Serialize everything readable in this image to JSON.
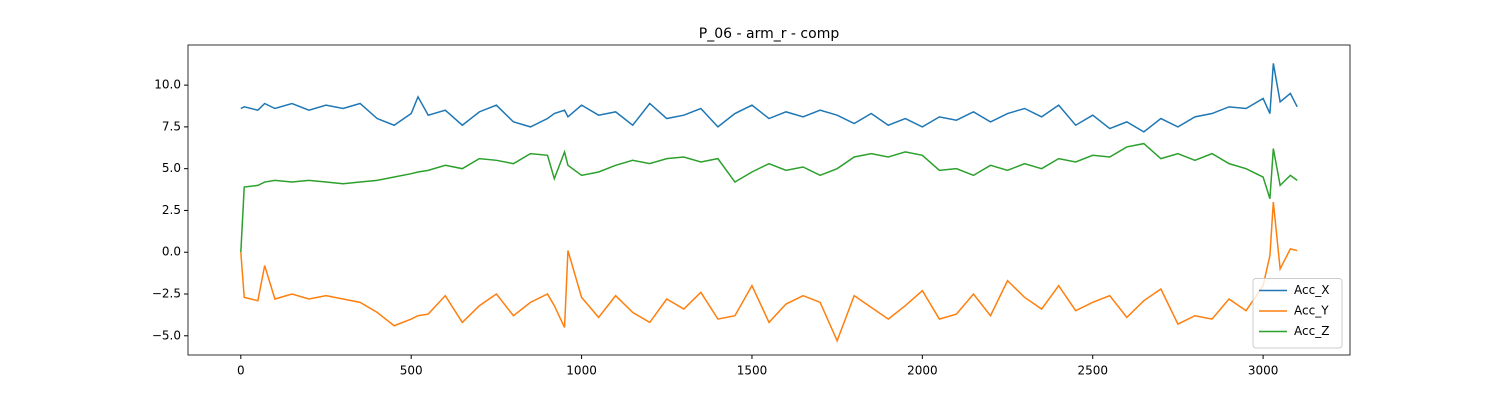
{
  "chart_data": {
    "type": "line",
    "title": "P_06 - arm_r - comp",
    "x": [
      0,
      10,
      50,
      70,
      100,
      150,
      200,
      250,
      300,
      350,
      400,
      450,
      500,
      520,
      550,
      600,
      650,
      700,
      750,
      800,
      850,
      900,
      920,
      950,
      960,
      1000,
      1050,
      1100,
      1150,
      1200,
      1250,
      1300,
      1350,
      1400,
      1450,
      1500,
      1550,
      1600,
      1650,
      1700,
      1750,
      1800,
      1850,
      1900,
      1950,
      2000,
      2050,
      2100,
      2150,
      2200,
      2250,
      2300,
      2350,
      2400,
      2450,
      2500,
      2550,
      2600,
      2650,
      2700,
      2750,
      2800,
      2850,
      2900,
      2950,
      3000,
      3020,
      3030,
      3050,
      3080,
      3100
    ],
    "series": [
      {
        "name": "Acc_X",
        "color": "#1f77b4",
        "values": [
          8.6,
          8.7,
          8.5,
          8.9,
          8.6,
          8.9,
          8.5,
          8.8,
          8.6,
          8.9,
          8.0,
          7.6,
          8.3,
          9.3,
          8.2,
          8.5,
          7.6,
          8.4,
          8.8,
          7.8,
          7.5,
          8.0,
          8.3,
          8.5,
          8.1,
          8.8,
          8.2,
          8.4,
          7.6,
          8.9,
          8.0,
          8.2,
          8.6,
          7.5,
          8.3,
          8.8,
          8.0,
          8.4,
          8.1,
          8.5,
          8.2,
          7.7,
          8.3,
          7.6,
          8.0,
          7.5,
          8.1,
          7.9,
          8.4,
          7.8,
          8.3,
          8.6,
          8.1,
          8.8,
          7.6,
          8.2,
          7.4,
          7.8,
          7.2,
          8.0,
          7.5,
          8.1,
          8.3,
          8.7,
          8.6,
          9.2,
          8.3,
          11.3,
          9.0,
          9.5,
          8.7
        ]
      },
      {
        "name": "Acc_Y",
        "color": "#ff7f0e",
        "values": [
          0,
          -2.7,
          -2.9,
          -0.8,
          -2.8,
          -2.5,
          -2.8,
          -2.6,
          -2.8,
          -3.0,
          -3.6,
          -4.4,
          -4.0,
          -3.8,
          -3.7,
          -2.6,
          -4.2,
          -3.2,
          -2.5,
          -3.8,
          -3.0,
          -2.5,
          -3.2,
          -4.5,
          0.1,
          -2.7,
          -3.9,
          -2.6,
          -3.6,
          -4.2,
          -2.8,
          -3.4,
          -2.4,
          -4.0,
          -3.8,
          -2.0,
          -4.2,
          -3.1,
          -2.6,
          -3.0,
          -5.3,
          -2.6,
          -3.3,
          -4.0,
          -3.2,
          -2.3,
          -4.0,
          -3.7,
          -2.5,
          -3.8,
          -1.7,
          -2.7,
          -3.4,
          -2.0,
          -3.5,
          -3.0,
          -2.6,
          -3.9,
          -2.9,
          -2.2,
          -4.3,
          -3.8,
          -4.0,
          -2.8,
          -3.5,
          -2.0,
          -0.2,
          3.0,
          -1.0,
          0.2,
          0.1
        ]
      },
      {
        "name": "Acc_Z",
        "color": "#2ca02c",
        "values": [
          0,
          3.9,
          4.0,
          4.2,
          4.3,
          4.2,
          4.3,
          4.2,
          4.1,
          4.2,
          4.3,
          4.5,
          4.7,
          4.8,
          4.9,
          5.2,
          5.0,
          5.6,
          5.5,
          5.3,
          5.9,
          5.8,
          4.4,
          6.0,
          5.2,
          4.6,
          4.8,
          5.2,
          5.5,
          5.3,
          5.6,
          5.7,
          5.4,
          5.6,
          4.2,
          4.8,
          5.3,
          4.9,
          5.1,
          4.6,
          5.0,
          5.7,
          5.9,
          5.7,
          6.0,
          5.8,
          4.9,
          5.0,
          4.6,
          5.2,
          4.9,
          5.3,
          5.0,
          5.6,
          5.4,
          5.8,
          5.7,
          6.3,
          6.5,
          5.6,
          5.9,
          5.5,
          5.9,
          5.3,
          5.0,
          4.5,
          3.2,
          6.2,
          4.0,
          4.6,
          4.3
        ]
      }
    ],
    "xlim": [
      -155,
      3255
    ],
    "xticks": [
      0,
      500,
      1000,
      1500,
      2000,
      2500,
      3000
    ],
    "ylim": [
      -6.15,
      12.4
    ],
    "yticks": [
      {
        "value": -5,
        "label": "−5.0"
      },
      {
        "value": -2.5,
        "label": "−2.5"
      },
      {
        "value": 0,
        "label": "0.0"
      },
      2.5,
      {
        "value": 5,
        "label": "5.0"
      },
      7.5,
      {
        "value": 10,
        "label": "10.0"
      }
    ],
    "legend": "lower right"
  }
}
